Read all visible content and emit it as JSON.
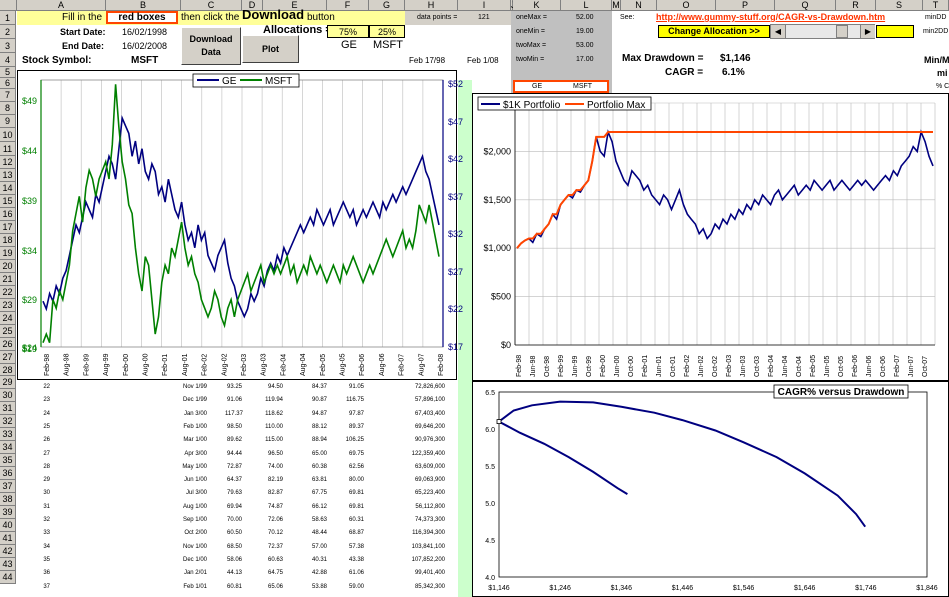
{
  "columns": [
    "A",
    "B",
    "C",
    "D",
    "E",
    "F",
    "G",
    "H",
    "I",
    "J",
    "K",
    "L",
    "M",
    "N",
    "O",
    "P",
    "Q",
    "R",
    "S",
    "T"
  ],
  "rows": [
    1,
    2,
    3,
    4,
    5,
    6,
    7,
    8,
    9,
    10,
    11,
    12,
    13,
    14,
    15,
    16,
    17,
    18,
    19,
    20,
    21,
    22,
    23,
    24,
    25,
    26,
    27,
    28,
    29,
    30,
    31,
    32,
    33,
    34,
    35,
    36,
    37,
    38,
    39,
    40,
    41,
    42,
    43,
    44
  ],
  "top": {
    "fill_in": "Fill in the",
    "red_boxes": "red boxes",
    "then_click": "then click the",
    "download_word": "Download",
    "button_word": "button",
    "start_label": "Start Date:",
    "start_value": "16/02/1998",
    "end_label": "End Date:",
    "end_value": "16/02/2008",
    "symbol_label": "Stock Symbol:",
    "symbol_value": "MSFT",
    "download_btn": "Download Data",
    "plot_btn": "Plot",
    "alloc_label": "Allocations =",
    "alloc_ge": "75%",
    "alloc_msft": "25%",
    "ge": "GE",
    "msft": "MSFT",
    "data_points_label": "data points =",
    "data_points_value": "121",
    "feb1798": "Feb 17/98",
    "feb108": "Feb 1/08",
    "onemax_l": "oneMax =",
    "onemax_v": "52.00",
    "onemin_l": "oneMin =",
    "onemin_v": "19.00",
    "twomax_l": "twoMax =",
    "twomax_v": "53.00",
    "twomin_l": "twoMin =",
    "twomin_v": "17.00",
    "k_ge": "GE",
    "k_msft": "MSFT",
    "see": "See:",
    "url": "http://www.gummy-stuff.org/CAGR-vs-Drawdown.htm",
    "change_alloc": "Change Allocation  >>",
    "mindd": "minDD",
    "min2dd": "min2DD",
    "minm": "Min/M",
    "mi": "mi",
    "pct": "% C",
    "max_dd_label": "Max Drawdown =",
    "max_dd_value": "$1,146",
    "cagr_label": "CAGR =",
    "cagr_value": "6.1%"
  },
  "chart1": {
    "legend": [
      "GE",
      "MSFT"
    ],
    "left_ticks": [
      "$49",
      "$44",
      "$39",
      "$34",
      "$29",
      "$24",
      "$19"
    ],
    "right_ticks": [
      "$52",
      "$47",
      "$42",
      "$37",
      "$32",
      "$27",
      "$22",
      "$17"
    ],
    "x_ticks": [
      "Feb-98",
      "Aug-98",
      "Feb-99",
      "Aug-99",
      "Feb-00",
      "Aug-00",
      "Feb-01",
      "Aug-01",
      "Feb-02",
      "Aug-02",
      "Feb-03",
      "Aug-03",
      "Feb-04",
      "Aug-04",
      "Feb-05",
      "Aug-05",
      "Feb-06",
      "Aug-06",
      "Feb-07",
      "Aug-07",
      "Feb-08"
    ],
    "colors": {
      "ge": "#000080",
      "msft": "#008000"
    }
  },
  "chart2": {
    "legend": [
      "$1K Portfolio",
      "Portfolio Max"
    ],
    "y_ticks": [
      "$2,000",
      "$1,500",
      "$1,000",
      "$500",
      "$0"
    ],
    "x_ticks": [
      "Feb-98",
      "Jun-98",
      "Oct-98",
      "Feb-99",
      "Jun-99",
      "Oct-99",
      "Feb-00",
      "Jun-00",
      "Oct-00",
      "Feb-01",
      "Jun-01",
      "Oct-01",
      "Feb-02",
      "Jun-02",
      "Oct-02",
      "Feb-03",
      "Jun-03",
      "Oct-03",
      "Feb-04",
      "Jun-04",
      "Oct-04",
      "Feb-05",
      "Jun-05",
      "Oct-05",
      "Feb-06",
      "Jun-06",
      "Oct-06",
      "Feb-07",
      "Jun-07",
      "Oct-07"
    ],
    "colors": {
      "portfolio": "#000080",
      "max": "#ff4500"
    }
  },
  "chart3": {
    "title": "CAGR% versus Drawdown",
    "y_ticks": [
      "6.5",
      "6.0",
      "5.5",
      "5.0",
      "4.5",
      "4.0"
    ],
    "x_ticks": [
      "$1,146",
      "$1,246",
      "$1,346",
      "$1,446",
      "$1,546",
      "$1,646",
      "$1,746",
      "$1,846"
    ],
    "color": "#000080"
  },
  "table": [
    {
      "n": "22",
      "date": "Nov 1/99",
      "d": "93.25",
      "e": "94.50",
      "f": "84.37",
      "g": "91.05",
      "h": "72,826,600"
    },
    {
      "n": "23",
      "date": "Dec 1/99",
      "d": "91.06",
      "e": "119.94",
      "f": "90.87",
      "g": "116.75",
      "h": "57,896,100"
    },
    {
      "n": "24",
      "date": "Jan 3/00",
      "d": "117.37",
      "e": "118.62",
      "f": "94.87",
      "g": "97.87",
      "h": "67,403,400"
    },
    {
      "n": "25",
      "date": "Feb 1/00",
      "d": "98.50",
      "e": "110.00",
      "f": "88.12",
      "g": "89.37",
      "h": "69,646,200"
    },
    {
      "n": "26",
      "date": "Mar 1/00",
      "d": "89.62",
      "e": "115.00",
      "f": "88.94",
      "g": "106.25",
      "h": "90,976,300"
    },
    {
      "n": "27",
      "date": "Apr 3/00",
      "d": "94.44",
      "e": "96.50",
      "f": "65.00",
      "g": "69.75",
      "h": "122,359,400"
    },
    {
      "n": "28",
      "date": "May 1/00",
      "d": "72.87",
      "e": "74.00",
      "f": "60.38",
      "g": "62.56",
      "h": "63,609,000"
    },
    {
      "n": "29",
      "date": "Jun 1/00",
      "d": "64.37",
      "e": "82.19",
      "f": "63.81",
      "g": "80.00",
      "h": "69,063,900"
    },
    {
      "n": "30",
      "date": "Jul 3/00",
      "d": "79.63",
      "e": "82.87",
      "f": "67.75",
      "g": "69.81",
      "h": "65,223,400"
    },
    {
      "n": "31",
      "date": "Aug 1/00",
      "d": "69.94",
      "e": "74.87",
      "f": "66.12",
      "g": "69.81",
      "h": "56,112,800"
    },
    {
      "n": "32",
      "date": "Sep 1/00",
      "d": "70.00",
      "e": "72.06",
      "f": "58.63",
      "g": "60.31",
      "h": "74,373,300"
    },
    {
      "n": "33",
      "date": "Oct 2/00",
      "d": "60.50",
      "e": "70.12",
      "f": "48.44",
      "g": "68.87",
      "h": "116,394,300"
    },
    {
      "n": "34",
      "date": "Nov 1/00",
      "d": "68.50",
      "e": "72.37",
      "f": "57.00",
      "g": "57.38",
      "h": "103,841,100"
    },
    {
      "n": "35",
      "date": "Dec 1/00",
      "d": "58.06",
      "e": "60.63",
      "f": "40.31",
      "g": "43.38",
      "h": "107,852,200"
    },
    {
      "n": "36",
      "date": "Jan 2/01",
      "d": "44.13",
      "e": "64.75",
      "f": "42.88",
      "g": "61.06",
      "h": "99,401,400"
    },
    {
      "n": "37",
      "date": "Feb 1/01",
      "d": "60.81",
      "e": "65.06",
      "f": "53.88",
      "g": "59.00",
      "h": "85,342,300"
    }
  ]
}
